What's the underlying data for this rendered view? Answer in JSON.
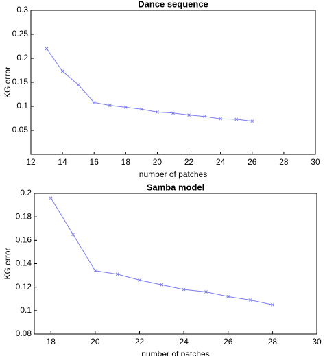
{
  "chart_data": [
    {
      "type": "line",
      "title": "Dance sequence",
      "xlabel": "number of patches",
      "ylabel": "KG error",
      "x": [
        13,
        14,
        15,
        16,
        17,
        18,
        19,
        20,
        21,
        22,
        23,
        24,
        25,
        26
      ],
      "series": [
        {
          "name": "KG error",
          "color": "#7b7bf0",
          "values": [
            0.22,
            0.173,
            0.145,
            0.108,
            0.102,
            0.098,
            0.094,
            0.088,
            0.086,
            0.082,
            0.079,
            0.074,
            0.073,
            0.069
          ]
        }
      ],
      "xlim": [
        12,
        30
      ],
      "xticks": [
        12,
        14,
        16,
        18,
        20,
        22,
        24,
        26,
        28,
        30
      ],
      "ylim": [
        0,
        0.3
      ],
      "yticks": [
        0.05,
        0.1,
        0.15,
        0.2,
        0.25,
        0.3
      ]
    },
    {
      "type": "line",
      "title": "Samba model",
      "xlabel": "number of patches",
      "ylabel": "KG error",
      "x": [
        18,
        19,
        20,
        21,
        22,
        23,
        24,
        25,
        26,
        27,
        28
      ],
      "series": [
        {
          "name": "KG error",
          "color": "#7b7bf0",
          "values": [
            0.196,
            0.165,
            0.134,
            0.131,
            0.126,
            0.122,
            0.118,
            0.116,
            0.112,
            0.109,
            0.105
          ]
        }
      ],
      "xlim": [
        17.25,
        30
      ],
      "xticks": [
        18,
        20,
        22,
        24,
        26,
        28,
        30
      ],
      "ylim": [
        0.08,
        0.2
      ],
      "yticks": [
        0.08,
        0.1,
        0.12,
        0.14,
        0.16,
        0.18,
        0.2
      ]
    }
  ]
}
